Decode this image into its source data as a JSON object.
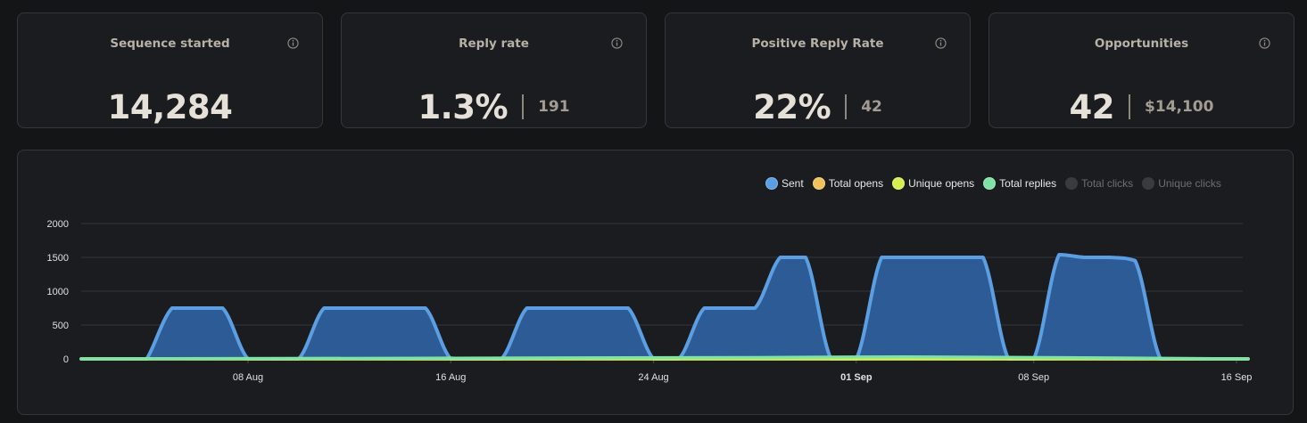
{
  "cards": [
    {
      "title": "Sequence started",
      "value": "14,284",
      "secondary": ""
    },
    {
      "title": "Reply rate",
      "value": "1.3%",
      "secondary": "191"
    },
    {
      "title": "Positive Reply Rate",
      "value": "22%",
      "secondary": "42"
    },
    {
      "title": "Opportunities",
      "value": "42",
      "secondary": "$14,100"
    }
  ],
  "legend": [
    {
      "label": "Sent",
      "color": "#5b9ee1",
      "active": true
    },
    {
      "label": "Total opens",
      "color": "#efc35a",
      "active": true
    },
    {
      "label": "Unique opens",
      "color": "#d7ef4e",
      "active": true
    },
    {
      "label": "Total replies",
      "color": "#7fe3a6",
      "active": true
    },
    {
      "label": "Total clicks",
      "color": "#3a3b3e",
      "active": false
    },
    {
      "label": "Unique clicks",
      "color": "#3a3b3e",
      "active": false
    }
  ],
  "chart_data": {
    "type": "area",
    "ylim": [
      0,
      2000
    ],
    "y_ticks": [
      "0",
      "500",
      "1000",
      "1500",
      "2000"
    ],
    "x_ticks": [
      {
        "label": "08 Aug",
        "date": "2024-08-08",
        "bold": false
      },
      {
        "label": "16 Aug",
        "date": "2024-08-16",
        "bold": false
      },
      {
        "label": "24 Aug",
        "date": "2024-08-24",
        "bold": false
      },
      {
        "label": "01 Sep",
        "date": "2024-09-01",
        "bold": true
      },
      {
        "label": "08 Sep",
        "date": "2024-09-08",
        "bold": false
      },
      {
        "label": "16 Sep",
        "date": "2024-09-16",
        "bold": false
      }
    ],
    "series": [
      {
        "name": "Sent",
        "color": "#5b9ee1",
        "fill": "#2d5f9c",
        "points": [
          [
            "2024-07-27",
            0
          ],
          [
            "2024-08-02",
            0
          ],
          [
            "2024-08-03.5",
            0
          ],
          [
            "2024-08-04",
            0
          ],
          [
            "2024-08-05",
            750
          ],
          [
            "2024-08-06",
            750
          ],
          [
            "2024-08-07",
            750
          ],
          [
            "2024-08-08",
            0
          ],
          [
            "2024-08-09",
            0
          ],
          [
            "2024-08-10",
            0
          ],
          [
            "2024-08-11",
            750
          ],
          [
            "2024-08-12",
            750
          ],
          [
            "2024-08-13",
            750
          ],
          [
            "2024-08-14",
            750
          ],
          [
            "2024-08-15",
            750
          ],
          [
            "2024-08-16",
            0
          ],
          [
            "2024-08-17",
            0
          ],
          [
            "2024-08-18",
            0
          ],
          [
            "2024-08-19",
            750
          ],
          [
            "2024-08-20",
            750
          ],
          [
            "2024-08-21",
            750
          ],
          [
            "2024-08-22",
            750
          ],
          [
            "2024-08-23",
            750
          ],
          [
            "2024-08-24",
            0
          ],
          [
            "2024-08-25",
            0
          ],
          [
            "2024-08-26",
            750
          ],
          [
            "2024-08-27",
            750
          ],
          [
            "2024-08-28",
            750
          ],
          [
            "2024-08-29",
            1500
          ],
          [
            "2024-08-30",
            1500
          ],
          [
            "2024-08-31",
            0
          ],
          [
            "2024-09-01",
            0
          ],
          [
            "2024-09-02",
            1500
          ],
          [
            "2024-09-03",
            1500
          ],
          [
            "2024-09-04",
            1500
          ],
          [
            "2024-09-05",
            1500
          ],
          [
            "2024-09-06",
            1500
          ],
          [
            "2024-09-07",
            0
          ],
          [
            "2024-09-08",
            0
          ],
          [
            "2024-09-09",
            1540
          ],
          [
            "2024-09-10",
            1500
          ],
          [
            "2024-09-11",
            1500
          ],
          [
            "2024-09-12",
            1450
          ],
          [
            "2024-09-13",
            0
          ],
          [
            "2024-09-14",
            0
          ],
          [
            "2024-09-15",
            0
          ],
          [
            "2024-09-16",
            0
          ],
          [
            "2024-09-17",
            0
          ]
        ]
      },
      {
        "name": "Total opens",
        "color": "#efc35a",
        "fill": "none",
        "points": [
          [
            "2024-07-27",
            0
          ],
          [
            "2024-09-17",
            0
          ]
        ]
      },
      {
        "name": "Unique opens",
        "color": "#d7ef4e",
        "fill": "none",
        "points": [
          [
            "2024-07-27",
            0
          ],
          [
            "2024-09-17",
            0
          ]
        ]
      },
      {
        "name": "Total replies",
        "color": "#7fe3a6",
        "fill": "none",
        "points": [
          [
            "2024-07-27",
            0
          ],
          [
            "2024-08-28",
            20
          ],
          [
            "2024-09-03",
            30
          ],
          [
            "2024-09-17",
            0
          ]
        ]
      }
    ]
  }
}
